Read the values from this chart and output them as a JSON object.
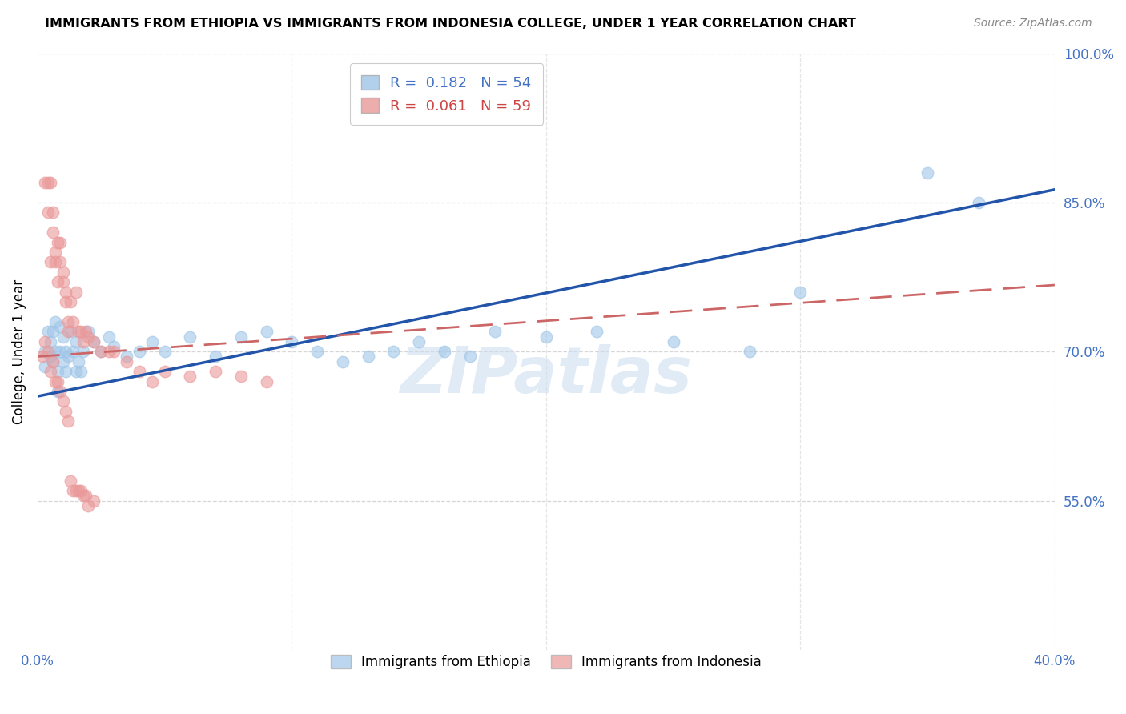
{
  "title": "IMMIGRANTS FROM ETHIOPIA VS IMMIGRANTS FROM INDONESIA COLLEGE, UNDER 1 YEAR CORRELATION CHART",
  "source": "Source: ZipAtlas.com",
  "ylabel": "College, Under 1 year",
  "xlim": [
    0.0,
    0.4
  ],
  "ylim": [
    0.4,
    1.0
  ],
  "xticks": [
    0.0,
    0.1,
    0.2,
    0.3,
    0.4
  ],
  "xticklabels": [
    "0.0%",
    "",
    "",
    "",
    "40.0%"
  ],
  "yticks_right": [
    0.55,
    0.7,
    0.85,
    1.0
  ],
  "yticklabels_right": [
    "55.0%",
    "70.0%",
    "85.0%",
    "100.0%"
  ],
  "legend_r_eth": "R =  0.182",
  "legend_n_eth": "N = 54",
  "legend_r_ind": "R =  0.061",
  "legend_n_ind": "N = 59",
  "color_ethiopia": "#9fc5e8",
  "color_indonesia": "#ea9999",
  "color_blue": "#4472c4",
  "color_red_line": "#cc4444",
  "watermark": "ZIPatlas",
  "eth_intercept": 0.655,
  "eth_slope": 0.52,
  "ind_intercept": 0.695,
  "ind_slope": 0.18,
  "ethiopia_x": [
    0.003,
    0.003,
    0.004,
    0.005,
    0.005,
    0.006,
    0.006,
    0.007,
    0.007,
    0.008,
    0.008,
    0.009,
    0.009,
    0.01,
    0.01,
    0.011,
    0.011,
    0.012,
    0.013,
    0.014,
    0.015,
    0.015,
    0.016,
    0.017,
    0.018,
    0.02,
    0.022,
    0.025,
    0.028,
    0.03,
    0.035,
    0.04,
    0.045,
    0.05,
    0.06,
    0.07,
    0.08,
    0.09,
    0.1,
    0.11,
    0.12,
    0.13,
    0.14,
    0.15,
    0.16,
    0.17,
    0.18,
    0.2,
    0.22,
    0.25,
    0.28,
    0.3,
    0.35,
    0.37
  ],
  "ethiopia_y": [
    0.685,
    0.7,
    0.72,
    0.71,
    0.695,
    0.72,
    0.69,
    0.73,
    0.7,
    0.68,
    0.66,
    0.7,
    0.725,
    0.69,
    0.715,
    0.7,
    0.68,
    0.695,
    0.72,
    0.7,
    0.68,
    0.71,
    0.69,
    0.68,
    0.7,
    0.72,
    0.71,
    0.7,
    0.715,
    0.705,
    0.695,
    0.7,
    0.71,
    0.7,
    0.715,
    0.695,
    0.715,
    0.72,
    0.71,
    0.7,
    0.69,
    0.695,
    0.7,
    0.71,
    0.7,
    0.695,
    0.72,
    0.715,
    0.72,
    0.71,
    0.7,
    0.76,
    0.88,
    0.85
  ],
  "indonesia_x": [
    0.002,
    0.003,
    0.004,
    0.004,
    0.005,
    0.005,
    0.006,
    0.006,
    0.007,
    0.007,
    0.008,
    0.008,
    0.009,
    0.009,
    0.01,
    0.01,
    0.011,
    0.011,
    0.012,
    0.012,
    0.013,
    0.014,
    0.015,
    0.016,
    0.017,
    0.018,
    0.019,
    0.02,
    0.022,
    0.025,
    0.028,
    0.03,
    0.035,
    0.04,
    0.045,
    0.05,
    0.06,
    0.07,
    0.08,
    0.09,
    0.003,
    0.004,
    0.005,
    0.006,
    0.007,
    0.008,
    0.009,
    0.01,
    0.011,
    0.012,
    0.013,
    0.014,
    0.015,
    0.016,
    0.017,
    0.018,
    0.019,
    0.02,
    0.022
  ],
  "indonesia_y": [
    0.695,
    0.87,
    0.87,
    0.84,
    0.87,
    0.79,
    0.84,
    0.82,
    0.79,
    0.8,
    0.81,
    0.77,
    0.81,
    0.79,
    0.78,
    0.77,
    0.76,
    0.75,
    0.72,
    0.73,
    0.75,
    0.73,
    0.76,
    0.72,
    0.72,
    0.71,
    0.72,
    0.715,
    0.71,
    0.7,
    0.7,
    0.7,
    0.69,
    0.68,
    0.67,
    0.68,
    0.675,
    0.68,
    0.675,
    0.67,
    0.71,
    0.7,
    0.68,
    0.69,
    0.67,
    0.67,
    0.66,
    0.65,
    0.64,
    0.63,
    0.57,
    0.56,
    0.56,
    0.56,
    0.56,
    0.555,
    0.555,
    0.545,
    0.55
  ]
}
